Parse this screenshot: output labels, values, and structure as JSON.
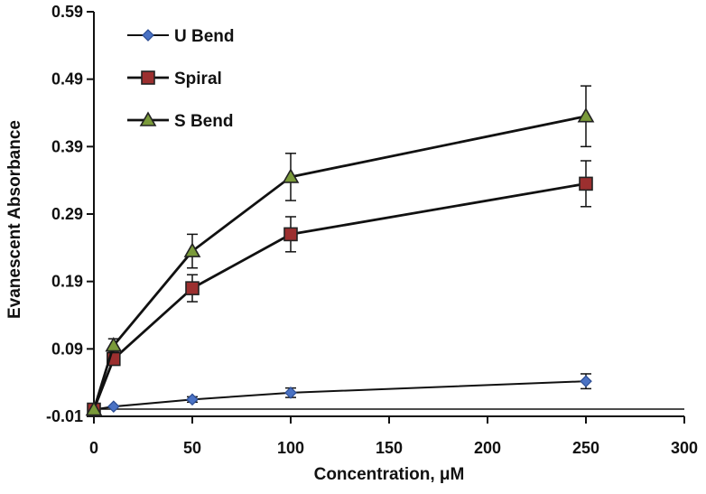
{
  "chart_data": {
    "type": "line",
    "title": "",
    "xlabel": "Concentration, μM",
    "ylabel": "Evanescent Absorbance",
    "xlim": [
      0,
      300
    ],
    "ylim": [
      -0.01,
      0.59
    ],
    "x_ticks": [
      0,
      50,
      100,
      150,
      200,
      250,
      300
    ],
    "x_tick_labels": [
      "0",
      "50",
      "100",
      "150",
      "200",
      "250",
      "300"
    ],
    "y_ticks": [
      -0.01,
      0.09,
      0.19,
      0.29,
      0.39,
      0.49,
      0.59
    ],
    "y_tick_labels": [
      "-0.01",
      "0.09",
      "0.19",
      "0.29",
      "0.39",
      "0.49",
      "0.59"
    ],
    "grid": false,
    "legend_position": "top-left",
    "x": [
      0,
      10,
      50,
      100,
      250
    ],
    "series": [
      {
        "name": "U Bend",
        "marker": "diamond",
        "color": "#4a72c4",
        "values": [
          0.0,
          0.0045,
          0.015,
          0.025,
          0.042
        ],
        "errors": [
          0.0,
          0.0,
          0.004,
          0.007,
          0.011
        ]
      },
      {
        "name": "Spiral",
        "marker": "square",
        "color": "#9c2f2f",
        "values": [
          0.0,
          0.075,
          0.18,
          0.26,
          0.335
        ],
        "errors": [
          0.0,
          0.0,
          0.02,
          0.026,
          0.034
        ]
      },
      {
        "name": "S Bend",
        "marker": "triangle",
        "color": "#7a9a3a",
        "values": [
          0.0,
          0.095,
          0.235,
          0.345,
          0.435
        ],
        "errors": [
          0.0,
          0.01,
          0.025,
          0.035,
          0.045
        ]
      }
    ]
  }
}
